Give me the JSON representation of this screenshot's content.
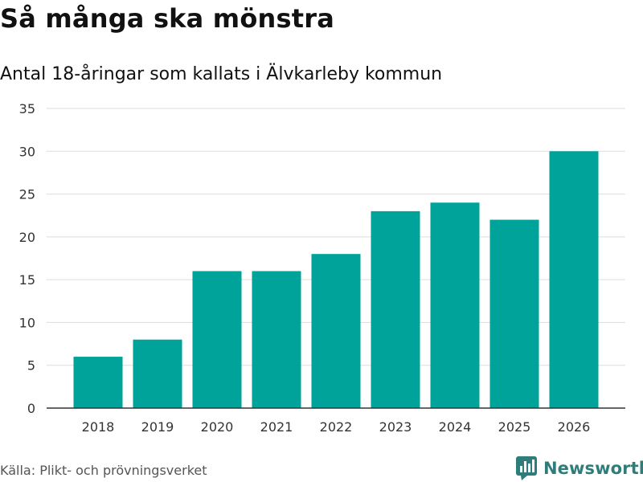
{
  "header": {
    "title": "Så många ska mönstra",
    "subtitle": "Antal 18-åringar som kallats i Älvkarleby kommun"
  },
  "footer": {
    "source": "Källa: Plikt- och prövningsverket",
    "brand": "Newsworthy",
    "brand_icon": "bar-chart-speech-bubble-icon"
  },
  "colors": {
    "bar": "#00a39a",
    "grid": "#dddddd",
    "axis": "#333333",
    "brand": "#2f7d7a"
  },
  "chart_data": {
    "type": "bar",
    "title": "Så många ska mönstra",
    "subtitle": "Antal 18-åringar som kallats i Älvkarleby kommun",
    "xlabel": "",
    "ylabel": "",
    "categories": [
      "2018",
      "2019",
      "2020",
      "2021",
      "2022",
      "2023",
      "2024",
      "2025",
      "2026"
    ],
    "values": [
      6,
      8,
      16,
      16,
      18,
      23,
      24,
      22,
      30
    ],
    "ylim": [
      0,
      35
    ],
    "yticks": [
      0,
      5,
      10,
      15,
      20,
      25,
      30,
      35
    ],
    "grid": true,
    "legend": "none"
  }
}
